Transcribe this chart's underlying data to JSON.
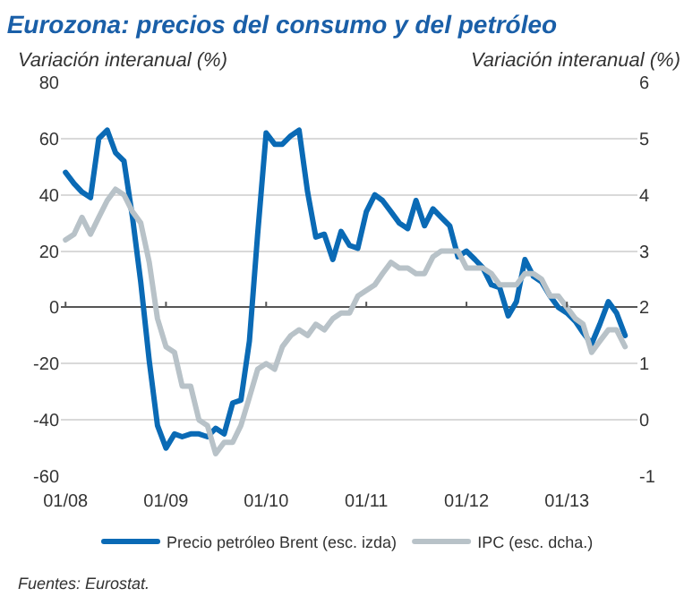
{
  "chart_data": {
    "type": "line",
    "title": "Eurozona: precios del consumo y del petróleo",
    "ylabel": "Variación interanual (%)",
    "y2label": "Variación interanual (%)",
    "x": [
      "2008-01",
      "2008-02",
      "2008-03",
      "2008-04",
      "2008-05",
      "2008-06",
      "2008-07",
      "2008-08",
      "2008-09",
      "2008-10",
      "2008-11",
      "2008-12",
      "2009-01",
      "2009-02",
      "2009-03",
      "2009-04",
      "2009-05",
      "2009-06",
      "2009-07",
      "2009-08",
      "2009-09",
      "2009-10",
      "2009-11",
      "2009-12",
      "2010-01",
      "2010-02",
      "2010-03",
      "2010-04",
      "2010-05",
      "2010-06",
      "2010-07",
      "2010-08",
      "2010-09",
      "2010-10",
      "2010-11",
      "2010-12",
      "2011-01",
      "2011-02",
      "2011-03",
      "2011-04",
      "2011-05",
      "2011-06",
      "2011-07",
      "2011-08",
      "2011-09",
      "2011-10",
      "2011-11",
      "2011-12",
      "2012-01",
      "2012-02",
      "2012-03",
      "2012-04",
      "2012-05",
      "2012-06",
      "2012-07",
      "2012-08",
      "2012-09",
      "2012-10",
      "2012-11",
      "2012-12",
      "2013-01",
      "2013-02",
      "2013-03",
      "2013-04",
      "2013-05",
      "2013-06",
      "2013-07",
      "2013-08"
    ],
    "series": [
      {
        "name": "Precio petróleo Brent (esc. izda)",
        "color": "#0a6ab5",
        "values": [
          48,
          44,
          41,
          39,
          60,
          63,
          55,
          52,
          32,
          9,
          -19,
          -42,
          -50,
          -45,
          -46,
          -45,
          -45,
          -46,
          -43,
          -45,
          -34,
          -33,
          -12,
          26,
          62,
          58,
          58,
          61,
          63,
          41,
          25,
          26,
          17,
          27,
          22,
          21,
          34,
          40,
          38,
          34,
          30,
          28,
          38,
          29,
          35,
          32,
          29,
          18,
          20,
          17,
          14,
          8,
          7,
          -3,
          2,
          17,
          11,
          9,
          4,
          0,
          -2,
          -5,
          -9,
          -13,
          -6,
          2,
          -2,
          -10
        ]
      },
      {
        "name": "IPC (esc. dcha.)",
        "color": "#b8c2c8",
        "axis": "y2",
        "values": [
          3.2,
          3.3,
          3.6,
          3.3,
          3.6,
          3.9,
          4.1,
          4.0,
          3.7,
          3.5,
          2.8,
          1.8,
          1.3,
          1.2,
          0.6,
          0.6,
          0.0,
          -0.1,
          -0.6,
          -0.4,
          -0.4,
          -0.1,
          0.4,
          0.9,
          1.0,
          0.9,
          1.3,
          1.5,
          1.6,
          1.5,
          1.7,
          1.6,
          1.8,
          1.9,
          1.9,
          2.2,
          2.3,
          2.4,
          2.6,
          2.8,
          2.7,
          2.7,
          2.6,
          2.6,
          2.9,
          3.0,
          3.0,
          3.0,
          2.7,
          2.7,
          2.7,
          2.6,
          2.4,
          2.4,
          2.4,
          2.6,
          2.6,
          2.5,
          2.2,
          2.2,
          2.0,
          1.8,
          1.7,
          1.2,
          1.4,
          1.6,
          1.6,
          1.3
        ]
      }
    ],
    "xlim": [
      "2007-12-15",
      "2013-09-15"
    ],
    "xticks": [
      {
        "value": "2008-01-01",
        "label": "01/08"
      },
      {
        "value": "2009-01-01",
        "label": "01/09"
      },
      {
        "value": "2010-01-01",
        "label": "01/10"
      },
      {
        "value": "2011-01-01",
        "label": "01/11"
      },
      {
        "value": "2012-01-01",
        "label": "01/12"
      },
      {
        "value": "2013-01-01",
        "label": "01/13"
      }
    ],
    "ylim": [
      -60,
      80
    ],
    "yticks": [
      -60,
      -40,
      -20,
      0,
      20,
      40,
      60,
      80
    ],
    "y2lim": [
      -1,
      6
    ],
    "y2ticks": [
      -1,
      0,
      1,
      2,
      3,
      4,
      5,
      6
    ],
    "grid": "y",
    "legend": "bottom",
    "line_style": "solid",
    "marker": "none",
    "annotations": [
      "Fuentes: Eurostat."
    ]
  }
}
